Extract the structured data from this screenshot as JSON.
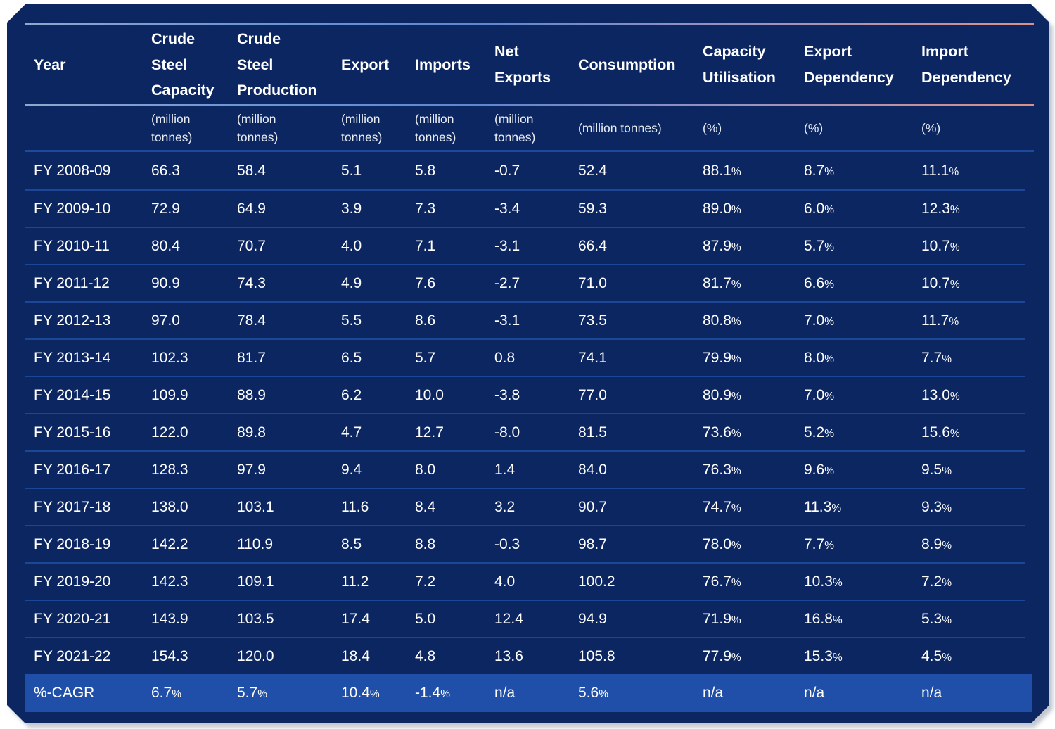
{
  "chart_data": {
    "type": "table",
    "columns": [
      {
        "label": "Year",
        "label_lines": "Year",
        "unit": "",
        "unit_lines": ""
      },
      {
        "label": "Crude Steel Capacity",
        "label_lines": "Crude\nSteel\nCapacity",
        "unit": "(million tonnes)",
        "unit_lines": "(million\ntonnes)"
      },
      {
        "label": "Crude Steel Production",
        "label_lines": "Crude\nSteel\nProduction",
        "unit": "(million tonnes)",
        "unit_lines": "(million\ntonnes)"
      },
      {
        "label": "Export",
        "label_lines": "Export",
        "unit": "(million tonnes)",
        "unit_lines": "(million\ntonnes)"
      },
      {
        "label": "Imports",
        "label_lines": "Imports",
        "unit": "(million tonnes)",
        "unit_lines": "(million\ntonnes)"
      },
      {
        "label": "Net Exports",
        "label_lines": "Net\nExports",
        "unit": "(million tonnes)",
        "unit_lines": "(million\ntonnes)"
      },
      {
        "label": "Consumption",
        "label_lines": "Consumption",
        "unit": "(million tonnes)",
        "unit_lines": "(million tonnes)"
      },
      {
        "label": "Capacity Utilisation",
        "label_lines": "Capacity\nUtilisation",
        "unit": "(%)",
        "unit_lines": "(%)"
      },
      {
        "label": "Export Dependency",
        "label_lines": "Export\nDependency",
        "unit": "(%)",
        "unit_lines": "(%)"
      },
      {
        "label": "Import Dependency",
        "label_lines": "Import\nDependency",
        "unit": "(%)",
        "unit_lines": "(%)"
      }
    ],
    "rows": [
      {
        "cells": [
          "FY 2008-09",
          "66.3",
          "58.4",
          "5.1",
          "5.8",
          "-0.7",
          "52.4",
          "88.1%",
          "8.7%",
          "11.1%"
        ]
      },
      {
        "cells": [
          "FY 2009-10",
          "72.9",
          "64.9",
          "3.9",
          "7.3",
          "-3.4",
          "59.3",
          "89.0%",
          "6.0%",
          "12.3%"
        ]
      },
      {
        "cells": [
          "FY 2010-11",
          "80.4",
          "70.7",
          "4.0",
          "7.1",
          "-3.1",
          "66.4",
          "87.9%",
          "5.7%",
          "10.7%"
        ]
      },
      {
        "cells": [
          "FY 2011-12",
          "90.9",
          "74.3",
          "4.9",
          "7.6",
          "-2.7",
          "71.0",
          "81.7%",
          "6.6%",
          "10.7%"
        ]
      },
      {
        "cells": [
          "FY 2012-13",
          "97.0",
          "78.4",
          "5.5",
          "8.6",
          "-3.1",
          "73.5",
          "80.8%",
          "7.0%",
          "11.7%"
        ]
      },
      {
        "cells": [
          "FY 2013-14",
          "102.3",
          "81.7",
          "6.5",
          "5.7",
          "0.8",
          "74.1",
          "79.9%",
          "8.0%",
          "7.7%"
        ]
      },
      {
        "cells": [
          "FY 2014-15",
          "109.9",
          "88.9",
          "6.2",
          "10.0",
          "-3.8",
          "77.0",
          "80.9%",
          "7.0%",
          "13.0%"
        ]
      },
      {
        "cells": [
          "FY 2015-16",
          "122.0",
          "89.8",
          "4.7",
          "12.7",
          "-8.0",
          "81.5",
          "73.6%",
          "5.2%",
          "15.6%"
        ]
      },
      {
        "cells": [
          "FY 2016-17",
          "128.3",
          "97.9",
          "9.4",
          "8.0",
          "1.4",
          "84.0",
          "76.3%",
          "9.6%",
          "9.5%"
        ]
      },
      {
        "cells": [
          "FY 2017-18",
          "138.0",
          "103.1",
          "11.6",
          "8.4",
          "3.2",
          "90.7",
          "74.7%",
          "11.3%",
          "9.3%"
        ]
      },
      {
        "cells": [
          "FY 2018-19",
          "142.2",
          "110.9",
          "8.5",
          "8.8",
          "-0.3",
          "98.7",
          "78.0%",
          "7.7%",
          "8.9%"
        ]
      },
      {
        "cells": [
          "FY 2019-20",
          "142.3",
          "109.1",
          "11.2",
          "7.2",
          "4.0",
          "100.2",
          "76.7%",
          "10.3%",
          "7.2%"
        ]
      },
      {
        "cells": [
          "FY 2020-21",
          "143.9",
          "103.5",
          "17.4",
          "5.0",
          "12.4",
          "94.9",
          "71.9%",
          "16.8%",
          "5.3%"
        ]
      },
      {
        "cells": [
          "FY 2021-22",
          "154.3",
          "120.0",
          "18.4",
          "4.8",
          "13.6",
          "105.8",
          "77.9%",
          "15.3%",
          "4.5%"
        ]
      }
    ],
    "summary_row": {
      "cells": [
        "%-CAGR",
        "6.7%",
        "5.7%",
        "10.4%",
        "-1.4%",
        "n/a",
        "5.6%",
        "n/a",
        "n/a",
        "n/a"
      ]
    },
    "layout_hints": {
      "grid": "horizontal row separators only",
      "summary_row_highlighted": true
    }
  },
  "colors": {
    "panel_background": "#0C2661",
    "summary_row_background": "#1F4FA8",
    "row_separator": "#1C4796",
    "units_rule": "#1D4A9C",
    "text": "#FFFFFF",
    "units_text": "#E9EDF4",
    "gradient_rule_left": "#8FA8CC",
    "gradient_rule_mid": "#5E87D0",
    "gradient_rule_right": "#DD9184",
    "page_background": "#FFFFFF"
  }
}
